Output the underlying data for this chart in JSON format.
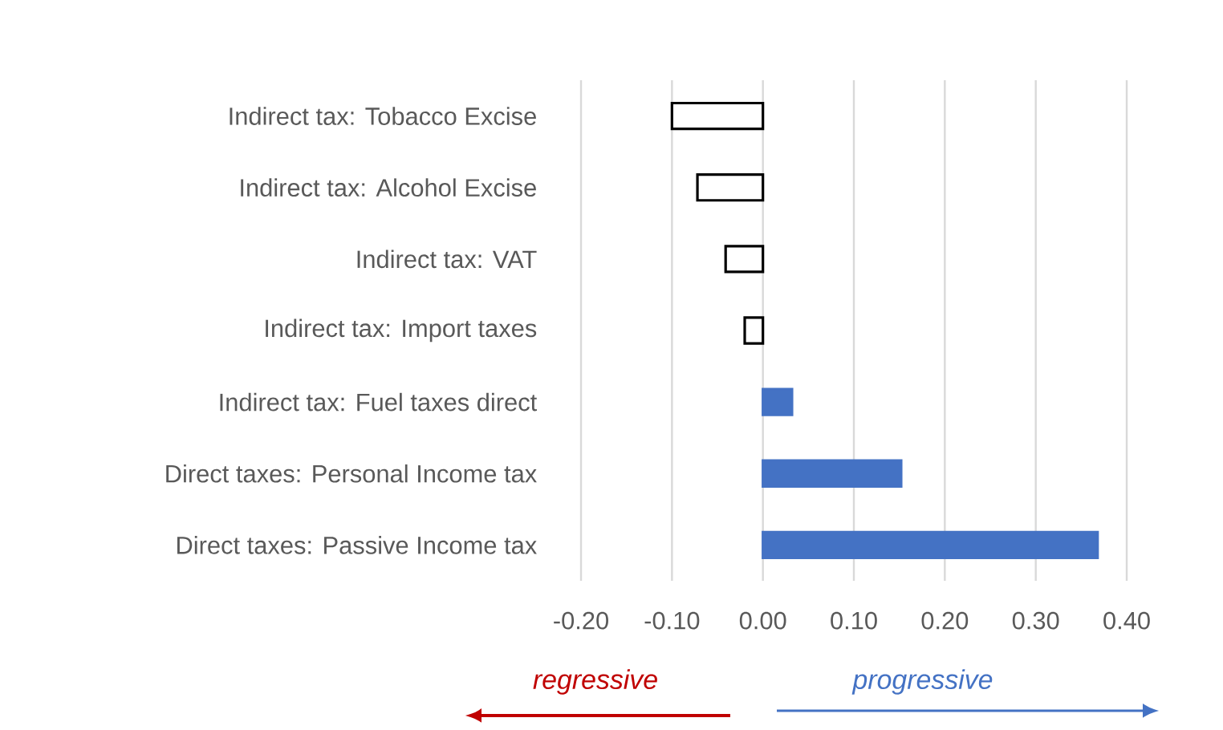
{
  "chart_data": {
    "type": "bar",
    "orientation": "horizontal",
    "categories": [
      "Indirect tax: Tobacco Excise",
      "Indirect tax: Alcohol Excise",
      "Indirect tax: VAT",
      "Indirect tax: Import taxes",
      "Indirect tax: Fuel taxes direct",
      "Direct taxes: Personal Income tax",
      "Direct taxes: Passive Income tax"
    ],
    "values": [
      -0.1,
      -0.072,
      -0.041,
      -0.02,
      0.032,
      0.152,
      0.368
    ],
    "colors": [
      "#ffffff",
      "#ffffff",
      "#ffffff",
      "#ffffff",
      "#4472c4",
      "#4472c4",
      "#4472c4"
    ],
    "xlim": [
      -0.2,
      0.4
    ],
    "xticks": [
      {
        "value": -0.2,
        "label": "-0.20"
      },
      {
        "value": -0.1,
        "label": "-0.10"
      },
      {
        "value": 0,
        "label": "0.00"
      },
      {
        "value": 0.1,
        "label": "0.10"
      },
      {
        "value": 0.2,
        "label": "0.20"
      },
      {
        "value": 0.3,
        "label": "0.30"
      },
      {
        "value": 0.4,
        "label": "0.40"
      }
    ],
    "grid": "x",
    "annotations": [
      "regressive",
      "progressive"
    ]
  }
}
